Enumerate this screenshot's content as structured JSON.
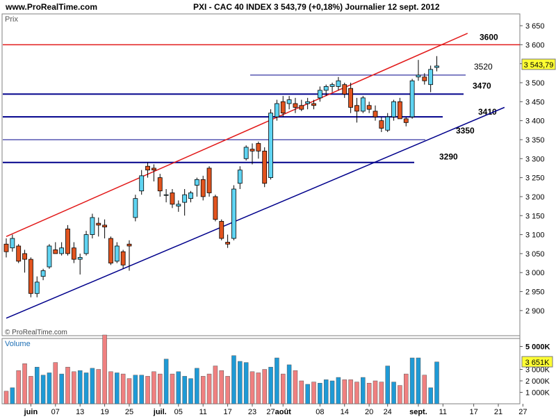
{
  "header": {
    "site": "www.ProRealTime.com",
    "info": "PXI - CAC 40 INDEX    3 543,79 (+0,18%)    Journalier   12 sept. 2012"
  },
  "price_panel": {
    "label": "Prix",
    "copyright": "© ProRealTime.com",
    "last_price_label": "3 543,79",
    "y_ticks": [
      "3 650",
      "3 600",
      "3 550",
      "3 500",
      "3 450",
      "3 400",
      "3 350",
      "3 300",
      "3 250",
      "3 200",
      "3 150",
      "3 100",
      "3 050",
      "3 000",
      "2 950",
      "2 900"
    ],
    "level_labels": [
      "3600",
      "3520",
      "3470",
      "3410",
      "3350",
      "3290"
    ]
  },
  "volume_panel": {
    "label": "Volume",
    "y_ticks": [
      "5 000K",
      "3 000K",
      "2 000K",
      "1 000K"
    ],
    "last_volume_label": "3 651K"
  },
  "x_ticks": [
    "juin",
    "07",
    "13",
    "19",
    "25",
    "juil.",
    "05",
    "11",
    "17",
    "23",
    "27",
    "août",
    "08",
    "14",
    "20",
    "24",
    "sept.",
    "11",
    "17",
    "21",
    "27"
  ],
  "colors": {
    "up": "#5fd4f2",
    "down": "#e2541f",
    "vol_up": "#1e9ad6",
    "vol_down": "#f08080",
    "resistance": "#e21a1a",
    "support": "#00008b"
  },
  "chart_data": {
    "type": "candlestick",
    "title": "PXI - CAC 40 INDEX",
    "ylim": [
      2880,
      3660
    ],
    "candles": [
      {
        "o": 3075,
        "h": 3090,
        "l": 3040,
        "c": 3055
      },
      {
        "o": 3065,
        "h": 3100,
        "l": 3055,
        "c": 3090
      },
      {
        "o": 3070,
        "h": 3075,
        "l": 3025,
        "c": 3030
      },
      {
        "o": 3050,
        "h": 3060,
        "l": 3000,
        "c": 3035
      },
      {
        "o": 3035,
        "h": 3040,
        "l": 2935,
        "c": 2945
      },
      {
        "o": 2945,
        "h": 2990,
        "l": 2935,
        "c": 2975
      },
      {
        "o": 2990,
        "h": 3010,
        "l": 2980,
        "c": 3005
      },
      {
        "o": 3015,
        "h": 3075,
        "l": 3010,
        "c": 3070
      },
      {
        "o": 3060,
        "h": 3080,
        "l": 3050,
        "c": 3050
      },
      {
        "o": 3050,
        "h": 3080,
        "l": 3045,
        "c": 3065
      },
      {
        "o": 3115,
        "h": 3125,
        "l": 3045,
        "c": 3050
      },
      {
        "o": 3065,
        "h": 3080,
        "l": 3025,
        "c": 3035
      },
      {
        "o": 3035,
        "h": 3050,
        "l": 2995,
        "c": 3040
      },
      {
        "o": 3050,
        "h": 3110,
        "l": 3045,
        "c": 3100
      },
      {
        "o": 3100,
        "h": 3155,
        "l": 3090,
        "c": 3145
      },
      {
        "o": 3130,
        "h": 3145,
        "l": 3095,
        "c": 3125
      },
      {
        "o": 3125,
        "h": 3140,
        "l": 3090,
        "c": 3120
      },
      {
        "o": 3090,
        "h": 3095,
        "l": 3020,
        "c": 3025
      },
      {
        "o": 3030,
        "h": 3080,
        "l": 3025,
        "c": 3070
      },
      {
        "o": 3055,
        "h": 3060,
        "l": 3010,
        "c": 3020
      },
      {
        "o": 3075,
        "h": 3085,
        "l": 3005,
        "c": 3070
      },
      {
        "o": 3145,
        "h": 3205,
        "l": 3135,
        "c": 3195
      },
      {
        "o": 3215,
        "h": 3270,
        "l": 3205,
        "c": 3255
      },
      {
        "o": 3280,
        "h": 3290,
        "l": 3250,
        "c": 3270
      },
      {
        "o": 3275,
        "h": 3285,
        "l": 3240,
        "c": 3270
      },
      {
        "o": 3250,
        "h": 3260,
        "l": 3200,
        "c": 3215
      },
      {
        "o": 3205,
        "h": 3220,
        "l": 3185,
        "c": 3205
      },
      {
        "o": 3210,
        "h": 3220,
        "l": 3170,
        "c": 3180
      },
      {
        "o": 3175,
        "h": 3190,
        "l": 3160,
        "c": 3180
      },
      {
        "o": 3185,
        "h": 3220,
        "l": 3150,
        "c": 3205
      },
      {
        "o": 3195,
        "h": 3215,
        "l": 3185,
        "c": 3210
      },
      {
        "o": 3230,
        "h": 3250,
        "l": 3200,
        "c": 3245
      },
      {
        "o": 3245,
        "h": 3255,
        "l": 3190,
        "c": 3200
      },
      {
        "o": 3275,
        "h": 3280,
        "l": 3200,
        "c": 3210
      },
      {
        "o": 3200,
        "h": 3205,
        "l": 3135,
        "c": 3140
      },
      {
        "o": 3135,
        "h": 3140,
        "l": 3085,
        "c": 3090
      },
      {
        "o": 3080,
        "h": 3100,
        "l": 3065,
        "c": 3075
      },
      {
        "o": 3090,
        "h": 3230,
        "l": 3085,
        "c": 3220
      },
      {
        "o": 3235,
        "h": 3280,
        "l": 3220,
        "c": 3270
      },
      {
        "o": 3300,
        "h": 3335,
        "l": 3295,
        "c": 3330
      },
      {
        "o": 3325,
        "h": 3340,
        "l": 3285,
        "c": 3320
      },
      {
        "o": 3340,
        "h": 3345,
        "l": 3300,
        "c": 3320
      },
      {
        "o": 3320,
        "h": 3330,
        "l": 3225,
        "c": 3235
      },
      {
        "o": 3250,
        "h": 3430,
        "l": 3245,
        "c": 3420
      },
      {
        "o": 3410,
        "h": 3455,
        "l": 3400,
        "c": 3445
      },
      {
        "o": 3450,
        "h": 3465,
        "l": 3410,
        "c": 3420
      },
      {
        "o": 3445,
        "h": 3465,
        "l": 3430,
        "c": 3455
      },
      {
        "o": 3445,
        "h": 3460,
        "l": 3420,
        "c": 3435
      },
      {
        "o": 3440,
        "h": 3455,
        "l": 3425,
        "c": 3430
      },
      {
        "o": 3445,
        "h": 3460,
        "l": 3430,
        "c": 3450
      },
      {
        "o": 3445,
        "h": 3455,
        "l": 3430,
        "c": 3440
      },
      {
        "o": 3460,
        "h": 3490,
        "l": 3450,
        "c": 3480
      },
      {
        "o": 3480,
        "h": 3495,
        "l": 3465,
        "c": 3490
      },
      {
        "o": 3490,
        "h": 3500,
        "l": 3475,
        "c": 3495
      },
      {
        "o": 3490,
        "h": 3515,
        "l": 3480,
        "c": 3505
      },
      {
        "o": 3495,
        "h": 3500,
        "l": 3460,
        "c": 3470
      },
      {
        "o": 3485,
        "h": 3500,
        "l": 3420,
        "c": 3435
      },
      {
        "o": 3440,
        "h": 3460,
        "l": 3395,
        "c": 3425
      },
      {
        "o": 3425,
        "h": 3465,
        "l": 3420,
        "c": 3460
      },
      {
        "o": 3440,
        "h": 3450,
        "l": 3420,
        "c": 3430
      },
      {
        "o": 3425,
        "h": 3440,
        "l": 3400,
        "c": 3410
      },
      {
        "o": 3400,
        "h": 3410,
        "l": 3370,
        "c": 3380
      },
      {
        "o": 3375,
        "h": 3420,
        "l": 3370,
        "c": 3410
      },
      {
        "o": 3410,
        "h": 3455,
        "l": 3400,
        "c": 3450
      },
      {
        "o": 3450,
        "h": 3460,
        "l": 3405,
        "c": 3405
      },
      {
        "o": 3405,
        "h": 3410,
        "l": 3385,
        "c": 3395
      },
      {
        "o": 3410,
        "h": 3510,
        "l": 3405,
        "c": 3505
      },
      {
        "o": 3515,
        "h": 3560,
        "l": 3505,
        "c": 3520
      },
      {
        "o": 3515,
        "h": 3525,
        "l": 3495,
        "c": 3505
      },
      {
        "o": 3495,
        "h": 3545,
        "l": 3475,
        "c": 3535
      },
      {
        "o": 3540,
        "h": 3570,
        "l": 3530,
        "c": 3544
      }
    ],
    "volume_k": [
      1100,
      1400,
      2900,
      3500,
      2400,
      3200,
      2500,
      2700,
      3600,
      2600,
      3200,
      2800,
      2900,
      2700,
      3100,
      3000,
      6000,
      2800,
      2700,
      2600,
      2200,
      2500,
      2500,
      2400,
      2800,
      2600,
      3900,
      2600,
      2800,
      2400,
      2200,
      3100,
      2400,
      2600,
      3300,
      2900,
      2400,
      4200,
      3700,
      3600,
      2800,
      2700,
      3000,
      3200,
      4000,
      2600,
      3400,
      2900,
      2000,
      1700,
      1900,
      1800,
      2100,
      2000,
      2300,
      2100,
      2100,
      1900,
      2300,
      1800,
      2000,
      1900,
      3300,
      1900,
      1600,
      2600,
      4000,
      4000,
      2500,
      1400,
      3651
    ],
    "levels": {
      "horizontal": [
        {
          "label": "3600",
          "value": 3600
        },
        {
          "label": "3520",
          "value": 3520
        },
        {
          "label": "3470",
          "value": 3470
        },
        {
          "label": "3410",
          "value": 3410
        },
        {
          "label": "3350",
          "value": 3350
        },
        {
          "label": "3290",
          "value": 3290
        }
      ],
      "resistance_line": [
        {
          "bar": 0,
          "value": 3095
        },
        {
          "bar": 75,
          "value": 3630
        }
      ],
      "support_line": [
        {
          "bar": 0,
          "value": 2880
        },
        {
          "bar": 81,
          "value": 3435
        }
      ]
    }
  }
}
